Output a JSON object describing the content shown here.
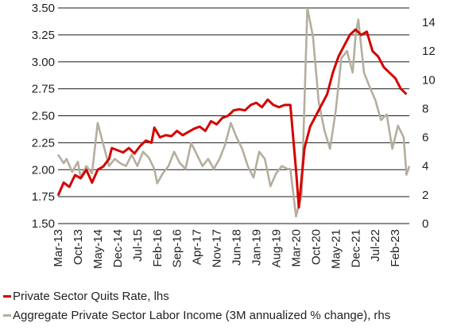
{
  "chart_data": {
    "type": "line",
    "title": "",
    "x_ticks": [
      "Mar-13",
      "Oct-13",
      "May-14",
      "Dec-14",
      "Jul-15",
      "Feb-16",
      "Sep-16",
      "Apr-17",
      "Nov-17",
      "Jun-18",
      "Jan-19",
      "Aug-19",
      "Mar-20",
      "Oct-20",
      "May-21",
      "Dec-21",
      "Jul-22",
      "Feb-23"
    ],
    "x_range": [
      "2013-03",
      "2023-07"
    ],
    "y_left": {
      "min": 1.5,
      "max": 3.5,
      "ticks": [
        "1.50",
        "1.75",
        "2.00",
        "2.25",
        "2.50",
        "2.75",
        "3.00",
        "3.25",
        "3.50"
      ]
    },
    "y_right": {
      "min": 0,
      "max": 15,
      "ticks": [
        "0",
        "2",
        "4",
        "6",
        "8",
        "10",
        "12",
        "14"
      ]
    },
    "grid": true,
    "legend_position": "bottom",
    "series": [
      {
        "name": "Private Sector Quits Rate, lhs",
        "axis": "left",
        "color": "#d40000",
        "points": [
          [
            "2013-03",
            1.76
          ],
          [
            "2013-05",
            1.88
          ],
          [
            "2013-07",
            1.84
          ],
          [
            "2013-09",
            1.95
          ],
          [
            "2013-11",
            1.92
          ],
          [
            "2014-01",
            2.0
          ],
          [
            "2014-03",
            1.88
          ],
          [
            "2014-05",
            2.0
          ],
          [
            "2014-07",
            2.03
          ],
          [
            "2014-09",
            2.1
          ],
          [
            "2014-10",
            2.2
          ],
          [
            "2014-12",
            2.18
          ],
          [
            "2015-02",
            2.16
          ],
          [
            "2015-04",
            2.2
          ],
          [
            "2015-06",
            2.15
          ],
          [
            "2015-08",
            2.22
          ],
          [
            "2015-10",
            2.27
          ],
          [
            "2015-12",
            2.25
          ],
          [
            "2016-01",
            2.39
          ],
          [
            "2016-03",
            2.3
          ],
          [
            "2016-05",
            2.32
          ],
          [
            "2016-07",
            2.31
          ],
          [
            "2016-09",
            2.36
          ],
          [
            "2016-11",
            2.32
          ],
          [
            "2017-01",
            2.35
          ],
          [
            "2017-03",
            2.38
          ],
          [
            "2017-05",
            2.4
          ],
          [
            "2017-07",
            2.36
          ],
          [
            "2017-09",
            2.45
          ],
          [
            "2017-11",
            2.42
          ],
          [
            "2018-01",
            2.48
          ],
          [
            "2018-03",
            2.5
          ],
          [
            "2018-05",
            2.55
          ],
          [
            "2018-07",
            2.56
          ],
          [
            "2018-09",
            2.55
          ],
          [
            "2018-11",
            2.6
          ],
          [
            "2019-01",
            2.62
          ],
          [
            "2019-03",
            2.58
          ],
          [
            "2019-05",
            2.65
          ],
          [
            "2019-07",
            2.6
          ],
          [
            "2019-09",
            2.58
          ],
          [
            "2019-11",
            2.6
          ],
          [
            "2020-01",
            2.6
          ],
          [
            "2020-03",
            2.0
          ],
          [
            "2020-04",
            1.65
          ],
          [
            "2020-06",
            2.2
          ],
          [
            "2020-08",
            2.4
          ],
          [
            "2020-10",
            2.5
          ],
          [
            "2020-12",
            2.6
          ],
          [
            "2021-02",
            2.7
          ],
          [
            "2021-04",
            2.9
          ],
          [
            "2021-06",
            3.05
          ],
          [
            "2021-08",
            3.15
          ],
          [
            "2021-10",
            3.25
          ],
          [
            "2021-12",
            3.3
          ],
          [
            "2022-02",
            3.25
          ],
          [
            "2022-04",
            3.28
          ],
          [
            "2022-06",
            3.1
          ],
          [
            "2022-08",
            3.05
          ],
          [
            "2022-10",
            2.95
          ],
          [
            "2022-12",
            2.9
          ],
          [
            "2023-02",
            2.85
          ],
          [
            "2023-04",
            2.75
          ],
          [
            "2023-06",
            2.7
          ]
        ]
      },
      {
        "name": "Aggregate Private Sector Labor Income (3M annualized % change), rhs",
        "axis": "right",
        "color": "#b5ae9e",
        "points": [
          [
            "2013-03",
            4.8
          ],
          [
            "2013-05",
            4.2
          ],
          [
            "2013-06",
            4.5
          ],
          [
            "2013-08",
            3.6
          ],
          [
            "2013-10",
            4.3
          ],
          [
            "2013-11",
            3.2
          ],
          [
            "2014-01",
            4.0
          ],
          [
            "2014-03",
            3.5
          ],
          [
            "2014-05",
            7.0
          ],
          [
            "2014-07",
            5.5
          ],
          [
            "2014-09",
            4.0
          ],
          [
            "2014-11",
            4.5
          ],
          [
            "2015-01",
            4.2
          ],
          [
            "2015-03",
            4.0
          ],
          [
            "2015-05",
            4.8
          ],
          [
            "2015-07",
            4.0
          ],
          [
            "2015-09",
            5.0
          ],
          [
            "2015-11",
            4.6
          ],
          [
            "2016-01",
            3.8
          ],
          [
            "2016-02",
            2.8
          ],
          [
            "2016-04",
            3.5
          ],
          [
            "2016-06",
            4.0
          ],
          [
            "2016-08",
            5.0
          ],
          [
            "2016-10",
            4.2
          ],
          [
            "2016-12",
            3.8
          ],
          [
            "2017-02",
            5.6
          ],
          [
            "2017-04",
            4.8
          ],
          [
            "2017-06",
            4.0
          ],
          [
            "2017-08",
            4.5
          ],
          [
            "2017-10",
            3.8
          ],
          [
            "2017-12",
            4.5
          ],
          [
            "2018-02",
            5.5
          ],
          [
            "2018-04",
            7.0
          ],
          [
            "2018-06",
            6.0
          ],
          [
            "2018-08",
            5.2
          ],
          [
            "2018-10",
            4.0
          ],
          [
            "2018-12",
            3.2
          ],
          [
            "2019-02",
            5.0
          ],
          [
            "2019-04",
            4.5
          ],
          [
            "2019-06",
            2.6
          ],
          [
            "2019-08",
            3.5
          ],
          [
            "2019-10",
            4.0
          ],
          [
            "2019-12",
            3.8
          ],
          [
            "2020-01",
            3.8
          ],
          [
            "2020-03",
            0.5
          ],
          [
            "2020-05",
            2.0
          ],
          [
            "2020-07",
            15.0
          ],
          [
            "2020-09",
            13.0
          ],
          [
            "2020-11",
            8.5
          ],
          [
            "2021-01",
            6.5
          ],
          [
            "2021-03",
            5.2
          ],
          [
            "2021-05",
            7.8
          ],
          [
            "2021-07",
            11.5
          ],
          [
            "2021-09",
            12.0
          ],
          [
            "2021-11",
            10.5
          ],
          [
            "2021-12",
            13.0
          ],
          [
            "2022-01",
            14.2
          ],
          [
            "2022-03",
            10.5
          ],
          [
            "2022-05",
            9.5
          ],
          [
            "2022-07",
            8.6
          ],
          [
            "2022-09",
            7.2
          ],
          [
            "2022-11",
            7.6
          ],
          [
            "2023-01",
            5.2
          ],
          [
            "2023-03",
            6.8
          ],
          [
            "2023-05",
            6.0
          ],
          [
            "2023-06",
            3.4
          ],
          [
            "2023-07",
            4.0
          ]
        ]
      }
    ]
  }
}
